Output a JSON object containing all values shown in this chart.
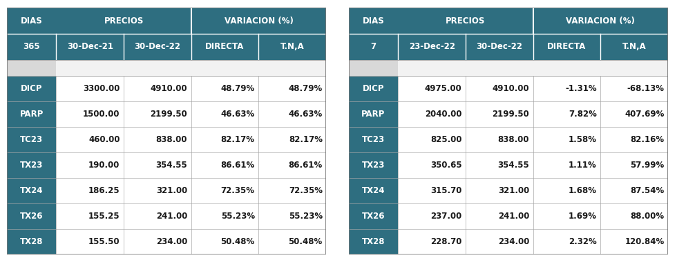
{
  "header_bg": "#2E6E80",
  "header_text": "#FFFFFF",
  "row_bg_dark": "#2E6E80",
  "row_text_dark": "#FFFFFF",
  "row_text_light": "#1A1A1A",
  "border_color": "#AAAAAA",
  "table1": {
    "sub_headers": [
      "365",
      "30-Dec-21",
      "30-Dec-22",
      "DIRECTA",
      "T.N,A"
    ],
    "rows": [
      [
        "DICP",
        "3300.00",
        "4910.00",
        "48.79%",
        "48.79%"
      ],
      [
        "PARP",
        "1500.00",
        "2199.50",
        "46.63%",
        "46.63%"
      ],
      [
        "TC23",
        "460.00",
        "838.00",
        "82.17%",
        "82.17%"
      ],
      [
        "TX23",
        "190.00",
        "354.55",
        "86.61%",
        "86.61%"
      ],
      [
        "TX24",
        "186.25",
        "321.00",
        "72.35%",
        "72.35%"
      ],
      [
        "TX26",
        "155.25",
        "241.00",
        "55.23%",
        "55.23%"
      ],
      [
        "TX28",
        "155.50",
        "234.00",
        "50.48%",
        "50.48%"
      ]
    ]
  },
  "table2": {
    "sub_headers": [
      "7",
      "23-Dec-22",
      "30-Dec-22",
      "DIRECTA",
      "T.N,A"
    ],
    "rows": [
      [
        "DICP",
        "4975.00",
        "4910.00",
        "-1.31%",
        "-68.13%"
      ],
      [
        "PARP",
        "2040.00",
        "2199.50",
        "7.82%",
        "407.69%"
      ],
      [
        "TC23",
        "825.00",
        "838.00",
        "1.58%",
        "82.16%"
      ],
      [
        "TX23",
        "350.65",
        "354.55",
        "1.11%",
        "57.99%"
      ],
      [
        "TX24",
        "315.70",
        "321.00",
        "1.68%",
        "87.54%"
      ],
      [
        "TX26",
        "237.00",
        "241.00",
        "1.69%",
        "88.00%"
      ],
      [
        "TX28",
        "228.70",
        "234.00",
        "2.32%",
        "120.84%"
      ]
    ]
  }
}
